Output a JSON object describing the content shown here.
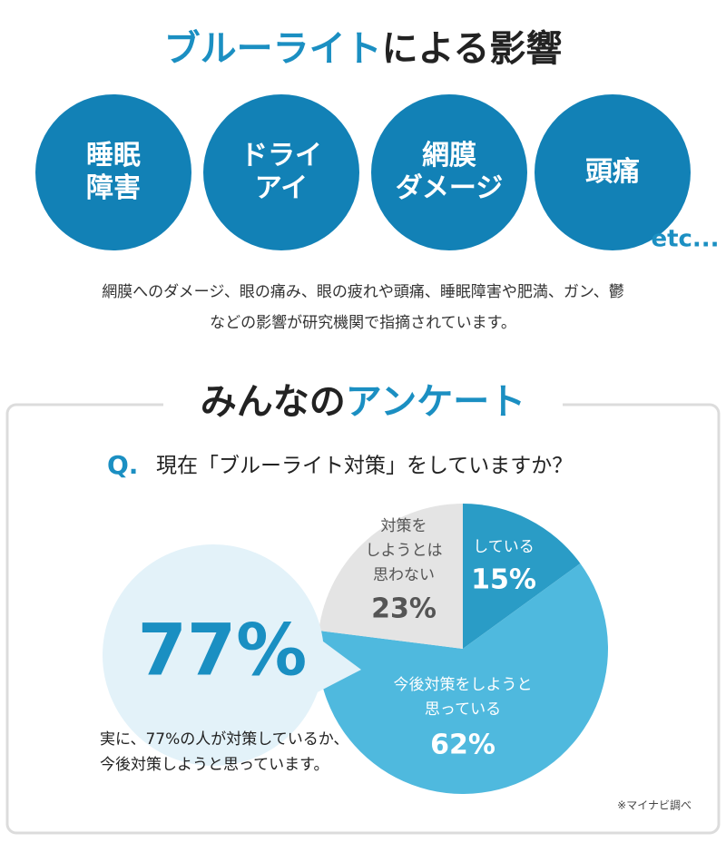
{
  "header": {
    "title_parts": [
      "ブルーライト",
      "による影響"
    ]
  },
  "effects": {
    "items": [
      [
        "睡眠",
        "障害"
      ],
      [
        "ドライ",
        "アイ"
      ],
      [
        "網膜",
        "ダメージ"
      ],
      [
        "頭痛"
      ]
    ],
    "etc": "etc..."
  },
  "description": [
    "網膜へのダメージ、眼の痛み、眼の疲れや頭痛、睡眠障害や肥満、ガン、鬱",
    "などの影響が研究機関で指摘されています。"
  ],
  "survey": {
    "title_parts": [
      "みんなの",
      "アンケート"
    ]
  },
  "chart_data": {
    "type": "pie",
    "question_mark": "Q.",
    "question": "現在「ブルーライト対策」をしていますか？",
    "categories": [
      [
        "している"
      ],
      [
        "今後対策をしようと",
        "思っている"
      ],
      [
        "対策を",
        "しようとは",
        "思わない"
      ]
    ],
    "values": [
      15,
      62,
      23
    ],
    "value_labels": [
      "15%",
      "62%",
      "23%"
    ],
    "colors": [
      "#2a9cc6",
      "#4fb9de",
      "#e4e4e4"
    ]
  },
  "callout": {
    "label": "77%",
    "note": [
      "実に、77%の人が対策しているか、",
      "今後対策しようと思っています。"
    ]
  },
  "source": "※マイナビ調べ"
}
